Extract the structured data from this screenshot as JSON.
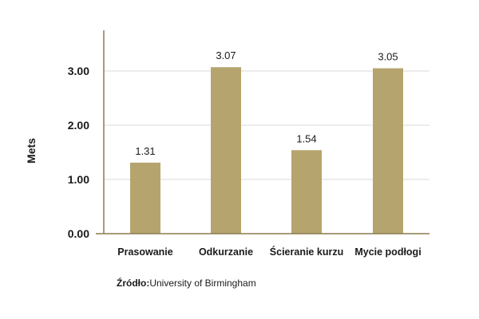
{
  "chart_data": {
    "type": "bar",
    "categories": [
      "Prasowanie",
      "Odkurzanie",
      "Ścieranie kurzu",
      "Mycie podłogi"
    ],
    "values": [
      1.31,
      3.07,
      1.54,
      3.05
    ],
    "data_labels": [
      "1.31",
      "3.07",
      "1.54",
      "3.05"
    ],
    "title": "",
    "xlabel": "",
    "ylabel": "Mets",
    "ylim": [
      0,
      3.2
    ],
    "yticks": [
      0,
      1,
      2,
      3
    ],
    "ytick_labels": [
      "0.00",
      "1.00",
      "2.00",
      "3.00"
    ],
    "grid": true,
    "bar_color": "#b5a46e",
    "gridline_color": "#d9d9d9"
  },
  "source": {
    "label": "Źródło:",
    "text": "University of Birmingham"
  }
}
